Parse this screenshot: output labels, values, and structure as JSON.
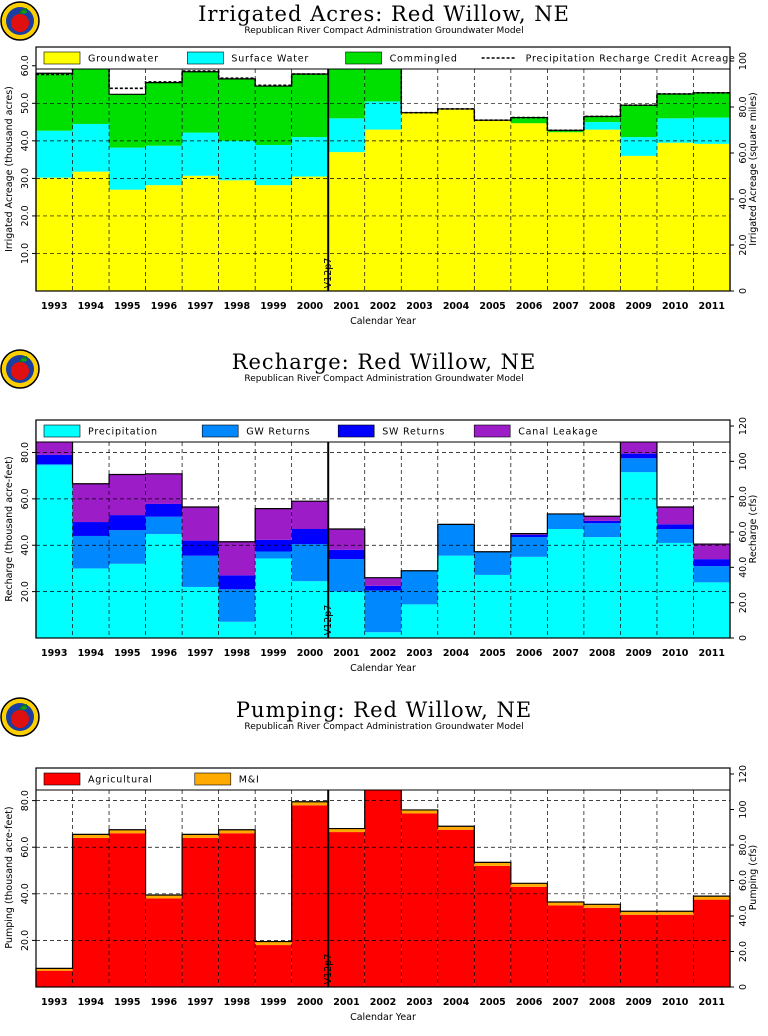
{
  "chart_data": [
    {
      "type": "area",
      "title": "Irrigated Acres: Red Willow, NE",
      "subtitle": "Republican River Compact Administration Groundwater Model",
      "xlabel": "Calendar Year",
      "ylabel": "Irrigated Acreage (thousand acres)",
      "y2label": "Irrigated Acreage (square miles)",
      "ylim": [
        0,
        65
      ],
      "yticks": [
        "10.0",
        "20.0",
        "30.0",
        "40.0",
        "50.0",
        "60.0"
      ],
      "y2ticks": [
        "0",
        "20.0",
        "40.0",
        "60.0",
        "80.0",
        "100"
      ],
      "stacked": true,
      "categories": [
        "1993",
        "1994",
        "1995",
        "1996",
        "1997",
        "1998",
        "1999",
        "2000",
        "2001",
        "2002",
        "2003",
        "2004",
        "2005",
        "2006",
        "2007",
        "2008",
        "2009",
        "2010",
        "2011"
      ],
      "series": [
        {
          "name": "Groundwater",
          "color": "#ffff00",
          "values": [
            30.2,
            31.8,
            27.0,
            28.2,
            30.7,
            29.5,
            28.2,
            30.5,
            37.0,
            43.0,
            47.5,
            48.5,
            45.5,
            44.7,
            42.3,
            43.0,
            36.0,
            39.5,
            39.2
          ]
        },
        {
          "name": "Surface Water",
          "color": "#00ffff",
          "values": [
            12.5,
            12.7,
            11.2,
            10.5,
            11.5,
            10.5,
            10.7,
            10.5,
            9.0,
            7.5,
            0,
            0,
            0,
            0,
            0,
            2.0,
            5.0,
            6.5,
            7.0
          ]
        },
        {
          "name": "Commingled",
          "color": "#00e000",
          "values": [
            15.3,
            15.5,
            14.2,
            16.8,
            16.2,
            16.5,
            15.7,
            16.8,
            18.3,
            9.3,
            0,
            0,
            0,
            1.5,
            0.5,
            1.5,
            8.5,
            6.5,
            6.6
          ]
        }
      ],
      "line_series": {
        "name": "Precipitation Recharge Credit Acreage",
        "style": "dashed",
        "values": [
          57.7,
          60.0,
          54.0,
          55.7,
          58.6,
          56.7,
          54.8,
          57.8,
          64.3,
          59.9,
          47.5,
          48.5,
          45.5,
          46.2,
          42.8,
          46.5,
          49.5,
          52.5,
          52.8
        ]
      },
      "marker": {
        "label": "V12p7",
        "x": 2000.5
      }
    },
    {
      "type": "area",
      "title": "Recharge: Red Willow, NE",
      "subtitle": "Republican River Compact Administration Groundwater Model",
      "xlabel": "Calendar Year",
      "ylabel": "Recharge (thousand acre-feet)",
      "y2label": "Recharge (cfs)",
      "ylim": [
        0,
        94
      ],
      "yticks": [
        "20.0",
        "40.0",
        "60.0",
        "80.0"
      ],
      "y2ticks": [
        "0",
        "20.0",
        "40.0",
        "60.0",
        "80.0",
        "100",
        "120"
      ],
      "stacked": true,
      "categories": [
        "1993",
        "1994",
        "1995",
        "1996",
        "1997",
        "1998",
        "1999",
        "2000",
        "2001",
        "2002",
        "2003",
        "2004",
        "2005",
        "2006",
        "2007",
        "2008",
        "2009",
        "2010",
        "2011"
      ],
      "series": [
        {
          "name": "Precipitation",
          "color": "#00ffff",
          "values": [
            74.5,
            30.0,
            32.0,
            44.8,
            22.0,
            7.0,
            34.3,
            24.5,
            20.0,
            2.5,
            14.5,
            35.5,
            27.2,
            35.0,
            47.0,
            43.5,
            71.5,
            41.0,
            24.0
          ]
        },
        {
          "name": "GW Returns",
          "color": "#0088ff",
          "values": [
            0.5,
            14.0,
            14.5,
            7.5,
            13.5,
            14.0,
            3.0,
            16.0,
            14.0,
            18.0,
            14.5,
            13.5,
            10.0,
            8.5,
            6.5,
            6.0,
            6.0,
            6.0,
            7.0
          ]
        },
        {
          "name": "SW Returns",
          "color": "#0000ff",
          "values": [
            4.0,
            6.0,
            6.5,
            5.5,
            6.5,
            6.0,
            5.0,
            6.5,
            4.0,
            2.0,
            0,
            0,
            0,
            1.0,
            0,
            1.0,
            2.0,
            2.0,
            3.0
          ]
        },
        {
          "name": "Canal Leakage",
          "color": "#9c1cc8",
          "values": [
            14.5,
            16.5,
            17.5,
            13.0,
            14.5,
            14.5,
            13.5,
            12.0,
            9.0,
            3.5,
            0,
            0,
            0,
            0.5,
            0,
            2.0,
            12.0,
            7.5,
            6.5
          ]
        }
      ],
      "marker": {
        "label": "V12p7",
        "x": 2000.5
      }
    },
    {
      "type": "area",
      "title": "Pumping: Red Willow, NE",
      "subtitle": "Republican River Compact Administration Groundwater Model",
      "xlabel": "Calendar Year",
      "ylabel": "Pumping (thousand acre-feet)",
      "y2label": "Pumping (cfs)",
      "ylim": [
        0,
        94
      ],
      "yticks": [
        "20.0",
        "40.0",
        "60.0",
        "80.0"
      ],
      "y2ticks": [
        "0",
        "20.0",
        "40.0",
        "60.0",
        "80.0",
        "100",
        "120"
      ],
      "stacked": true,
      "categories": [
        "1993",
        "1994",
        "1995",
        "1996",
        "1997",
        "1998",
        "1999",
        "2000",
        "2001",
        "2002",
        "2003",
        "2004",
        "2005",
        "2006",
        "2007",
        "2008",
        "2009",
        "2010",
        "2011"
      ],
      "series": [
        {
          "name": "Agricultural",
          "color": "#ff0000",
          "values": [
            7.0,
            64.0,
            66.0,
            38.0,
            64.0,
            66.0,
            18.0,
            78.0,
            66.5,
            91.0,
            74.5,
            67.5,
            52.0,
            43.0,
            35.0,
            34.0,
            31.0,
            31.0,
            37.5
          ]
        },
        {
          "name": "M&I",
          "color": "#ffaa00",
          "values": [
            1.0,
            1.5,
            1.5,
            1.5,
            1.5,
            1.5,
            1.5,
            1.5,
            1.5,
            1.5,
            1.5,
            1.5,
            1.5,
            1.5,
            1.5,
            1.5,
            1.5,
            1.5,
            1.5
          ]
        }
      ],
      "marker": {
        "label": "V12p7",
        "x": 2000.5
      }
    }
  ]
}
